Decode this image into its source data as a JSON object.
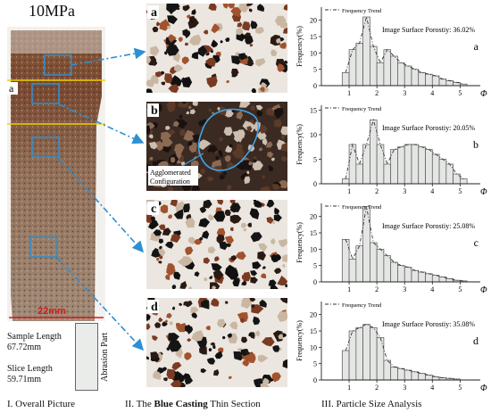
{
  "figure": {
    "title": "10MPa",
    "sample_length_label": "Sample Length",
    "sample_length_value": "67.72mm",
    "slice_length_label": "Slice Length",
    "slice_length_value": "59.71mm",
    "abrasion_label": "Abrasion Part",
    "scale_bar_label": "22mm",
    "core_marker": "a",
    "agglomerated_label_1": "Agglomerated",
    "agglomerated_label_2": "Configuration",
    "captions": {
      "left": "I. Overall Picture",
      "middle_prefix": "II. The ",
      "middle_bold": "Blue Casting",
      "middle_suffix": " Thin Section",
      "right": "III. Particle Size Analysis"
    },
    "thin_section_labels": [
      "a",
      "b",
      "c",
      "d"
    ]
  },
  "chart_data": [
    {
      "type": "bar",
      "panel": "a",
      "porosity_text": "Image Surface Porostiy: 36.02%",
      "ylabel": "Frequency(%)",
      "xlabel": "Φ",
      "legend": "Frequency Trend",
      "xlim": [
        0,
        5.6
      ],
      "ylim": [
        0,
        24
      ],
      "xticks": [
        1,
        2,
        3,
        4,
        5
      ],
      "yticks": [
        0,
        5,
        10,
        15,
        20
      ],
      "bin_width": 0.25,
      "bin_starts": [
        0.75,
        1.0,
        1.25,
        1.5,
        1.75,
        2.0,
        2.25,
        2.5,
        2.75,
        3.0,
        3.25,
        3.5,
        3.75,
        4.0,
        4.25,
        4.5,
        4.75,
        5.0
      ],
      "values": [
        4,
        11,
        13,
        21,
        12,
        7,
        11,
        9,
        7,
        6,
        5,
        4,
        3.5,
        3,
        2,
        1.5,
        1,
        0.5
      ]
    },
    {
      "type": "bar",
      "panel": "b",
      "porosity_text": "Image Surface Porostiy: 20.05%",
      "ylabel": "Frequency(%)",
      "xlabel": "Φ",
      "legend": "Frequency Trend",
      "xlim": [
        0,
        5.6
      ],
      "ylim": [
        0,
        16
      ],
      "xticks": [
        1,
        2,
        3,
        4,
        5
      ],
      "yticks": [
        0,
        5,
        10,
        15
      ],
      "bin_width": 0.25,
      "bin_starts": [
        0.75,
        1.0,
        1.25,
        1.5,
        1.75,
        2.0,
        2.25,
        2.5,
        2.75,
        3.0,
        3.25,
        3.5,
        3.75,
        4.0,
        4.25,
        4.5,
        4.75,
        5.0
      ],
      "values": [
        1,
        8,
        4,
        8,
        13,
        8,
        4,
        7,
        7.5,
        8,
        8,
        7.5,
        7,
        6,
        5,
        4,
        2,
        1
      ]
    },
    {
      "type": "bar",
      "panel": "c",
      "porosity_text": "Image Surface Porostiy: 25.08%",
      "ylabel": "Frequency(%)",
      "xlabel": "Φ",
      "legend": "Frequency Trend",
      "xlim": [
        0,
        5.6
      ],
      "ylim": [
        0,
        24
      ],
      "xticks": [
        1,
        2,
        3,
        4,
        5
      ],
      "yticks": [
        0,
        5,
        10,
        15,
        20
      ],
      "bin_width": 0.25,
      "bin_starts": [
        0.75,
        1.0,
        1.25,
        1.5,
        1.75,
        2.0,
        2.25,
        2.5,
        2.75,
        3.0,
        3.25,
        3.5,
        3.75,
        4.0,
        4.25,
        4.5,
        4.75,
        5.0
      ],
      "values": [
        13,
        7,
        11,
        23,
        12,
        10,
        8,
        6,
        5,
        4.5,
        3.5,
        3,
        2.5,
        2,
        1.5,
        1,
        0.5,
        0.3
      ]
    },
    {
      "type": "bar",
      "panel": "d",
      "porosity_text": "Image Surface Porostiy: 35.08%",
      "ylabel": "Frequency(%)",
      "xlabel": "Φ",
      "legend": "Frequency Trend",
      "xlim": [
        0,
        5.6
      ],
      "ylim": [
        0,
        24
      ],
      "xticks": [
        1,
        2,
        3,
        4,
        5
      ],
      "yticks": [
        0,
        5,
        10,
        15,
        20
      ],
      "bin_width": 0.25,
      "bin_starts": [
        0.75,
        1.0,
        1.25,
        1.5,
        1.75,
        2.0,
        2.25,
        2.5,
        2.75,
        3.0,
        3.25,
        3.5,
        3.75,
        4.0,
        4.25,
        4.5,
        4.75
      ],
      "values": [
        9,
        15,
        16,
        17,
        16,
        13,
        6,
        4,
        3.5,
        3,
        2.5,
        2,
        1.5,
        1,
        0.7,
        0.5,
        0.3
      ]
    }
  ]
}
